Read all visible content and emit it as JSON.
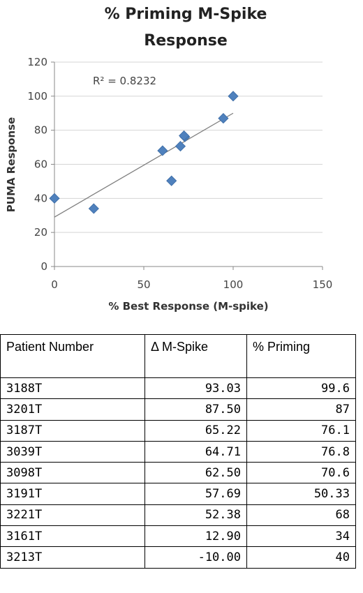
{
  "chart_data": {
    "type": "scatter",
    "title": "% Priming  M-Spike Response",
    "title_lines": [
      "% Priming  M-Spike",
      "Response"
    ],
    "xlabel": "% Best Response (M-spike)",
    "ylabel": "PUMA Response",
    "xlim": [
      0,
      150
    ],
    "ylim": [
      0,
      120
    ],
    "x_ticks": [
      0,
      50,
      100,
      150
    ],
    "y_ticks": [
      0,
      20,
      40,
      60,
      80,
      100,
      120
    ],
    "grid": "horizontal",
    "points": [
      {
        "x": 100,
        "y": 100
      },
      {
        "x": 94.5,
        "y": 87
      },
      {
        "x": 73,
        "y": 76.1
      },
      {
        "x": 72.5,
        "y": 76.8
      },
      {
        "x": 70.5,
        "y": 70.6
      },
      {
        "x": 65.5,
        "y": 50.3
      },
      {
        "x": 60.5,
        "y": 68
      },
      {
        "x": 22,
        "y": 34
      },
      {
        "x": 0,
        "y": 40
      }
    ],
    "trendline": {
      "x": [
        0,
        100
      ],
      "y": [
        29,
        90
      ]
    },
    "annotation": "R² = 0.8232",
    "marker_color": "#4f81bd",
    "trendline_color": "#7f7f7f"
  },
  "table": {
    "headers": [
      "Patient Number",
      "Δ M-Spike",
      "% Priming"
    ],
    "rows": [
      [
        "3188T",
        "93.03",
        "99.6"
      ],
      [
        "3201T",
        "87.50",
        "87"
      ],
      [
        "3187T",
        "65.22",
        "76.1"
      ],
      [
        "3039T",
        "64.71",
        "76.8"
      ],
      [
        "3098T",
        "62.50",
        "70.6"
      ],
      [
        "3191T",
        "57.69",
        "50.33"
      ],
      [
        "3221T",
        "52.38",
        "68"
      ],
      [
        "3161T",
        "12.90",
        "34"
      ],
      [
        "3213T",
        "-10.00",
        "40"
      ]
    ]
  }
}
